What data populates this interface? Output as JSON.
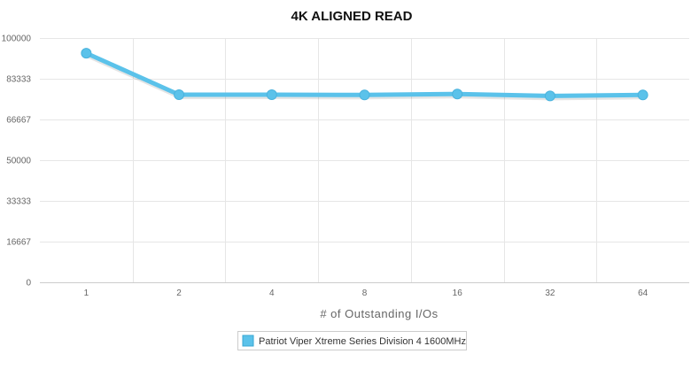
{
  "chart_data": {
    "type": "line",
    "title": "4K ALIGNED READ",
    "xlabel": "# of Outstanding I/Os",
    "ylabel": "",
    "categories": [
      "1",
      "2",
      "4",
      "8",
      "16",
      "32",
      "64"
    ],
    "y_ticks": [
      "0",
      "16667",
      "33333",
      "50000",
      "66667",
      "83333",
      "100000"
    ],
    "ylim": [
      0,
      100000
    ],
    "grid": true,
    "legend_position": "bottom-center",
    "series": [
      {
        "name": "Patriot Viper Xtreme Series Division 4 1600MHz",
        "color": "#5bc2ea",
        "values": [
          93800,
          76800,
          76800,
          76700,
          77100,
          76300,
          76700
        ]
      }
    ]
  }
}
